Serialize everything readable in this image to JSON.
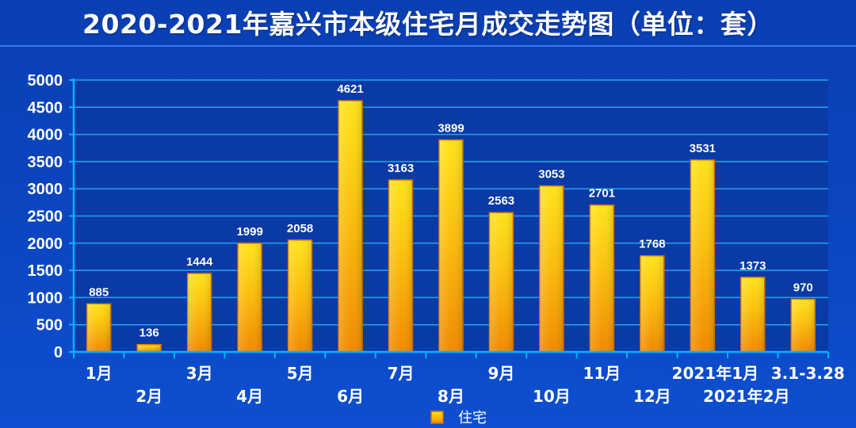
{
  "colors": {
    "background": "#0b46c2",
    "plot_background": "#0a3aa6",
    "gridline": "#1fa7e6",
    "axis": "#00b4ff",
    "bar_top": "#ffe31a",
    "bar_bottom": "#f08a00",
    "bar_edge": "#d86e00",
    "text": "#ffffff"
  },
  "chart_data": {
    "type": "bar",
    "title": "2020-2021年嘉兴市本级住宅月成交走势图（单位：套）",
    "categories": [
      "1月",
      "2月",
      "3月",
      "4月",
      "5月",
      "6月",
      "7月",
      "8月",
      "9月",
      "10月",
      "11月",
      "12月",
      "2021年1月",
      "2021年2月",
      "3.1-3.28"
    ],
    "series": [
      {
        "name": "住宅",
        "values": [
          885,
          136,
          1444,
          1999,
          2058,
          4621,
          3163,
          3899,
          2563,
          3053,
          2701,
          1768,
          3531,
          1373,
          970
        ]
      }
    ],
    "ylim": [
      0,
      5000
    ],
    "yticks": [
      0,
      500,
      1000,
      1500,
      2000,
      2500,
      3000,
      3500,
      4000,
      4500,
      5000
    ],
    "grid": true,
    "xlabel": "",
    "ylabel": "",
    "legend": "bottom-center"
  }
}
